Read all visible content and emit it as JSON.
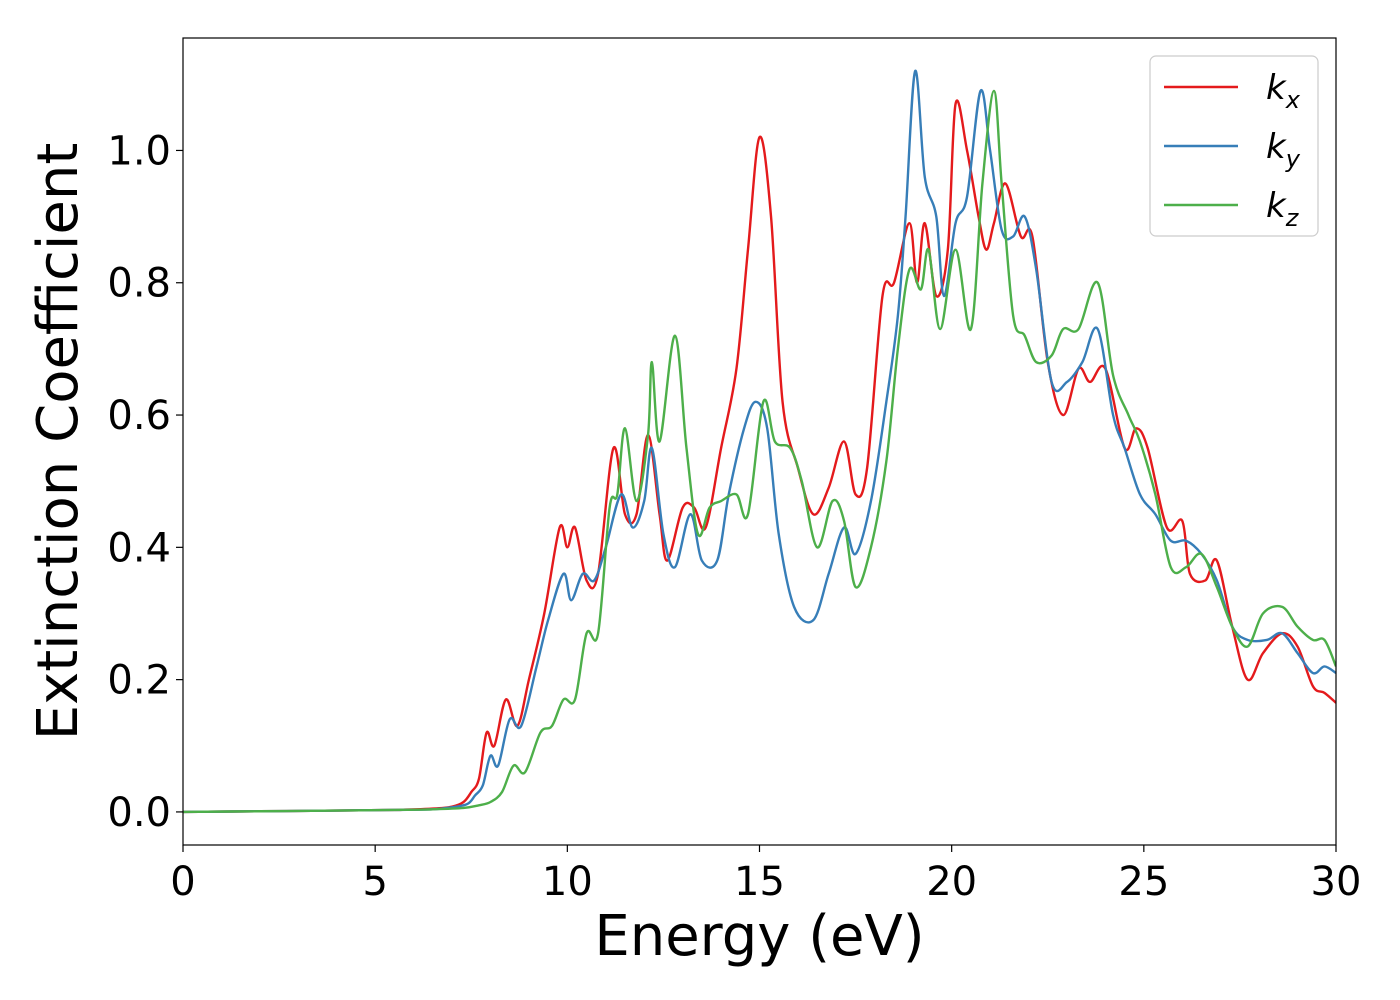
{
  "chart_data": {
    "type": "line",
    "title": "",
    "xlabel": "Energy (eV)",
    "ylabel": "Extinction Coefficient",
    "xlim": [
      0,
      30
    ],
    "ylim": [
      -0.05,
      1.17
    ],
    "xticks": [
      0,
      5,
      10,
      15,
      20,
      25,
      30
    ],
    "yticks": [
      0.0,
      0.2,
      0.4,
      0.6,
      0.8,
      1.0
    ],
    "xtick_labels": [
      "0",
      "5",
      "10",
      "15",
      "20",
      "25",
      "30"
    ],
    "ytick_labels": [
      "0.0",
      "0.2",
      "0.4",
      "0.6",
      "0.8",
      "1.0"
    ],
    "grid": false,
    "legend": {
      "position": "top-right"
    },
    "series": [
      {
        "name": "k",
        "subscript": "x",
        "color": "#e41a1c",
        "points": [
          [
            0,
            0.0
          ],
          [
            2,
            0.001
          ],
          [
            4,
            0.002
          ],
          [
            5.5,
            0.003
          ],
          [
            6.5,
            0.005
          ],
          [
            7.0,
            0.008
          ],
          [
            7.3,
            0.015
          ],
          [
            7.5,
            0.03
          ],
          [
            7.7,
            0.05
          ],
          [
            7.9,
            0.12
          ],
          [
            8.1,
            0.1
          ],
          [
            8.4,
            0.17
          ],
          [
            8.7,
            0.13
          ],
          [
            9.0,
            0.2
          ],
          [
            9.4,
            0.3
          ],
          [
            9.8,
            0.43
          ],
          [
            10.0,
            0.4
          ],
          [
            10.2,
            0.43
          ],
          [
            10.5,
            0.35
          ],
          [
            10.8,
            0.36
          ],
          [
            11.2,
            0.55
          ],
          [
            11.5,
            0.45
          ],
          [
            11.8,
            0.45
          ],
          [
            12.1,
            0.57
          ],
          [
            12.4,
            0.45
          ],
          [
            12.6,
            0.38
          ],
          [
            13.0,
            0.46
          ],
          [
            13.3,
            0.46
          ],
          [
            13.6,
            0.43
          ],
          [
            14.0,
            0.55
          ],
          [
            14.4,
            0.67
          ],
          [
            14.7,
            0.85
          ],
          [
            15.0,
            1.02
          ],
          [
            15.3,
            0.9
          ],
          [
            15.6,
            0.62
          ],
          [
            16.0,
            0.52
          ],
          [
            16.4,
            0.45
          ],
          [
            16.8,
            0.49
          ],
          [
            17.2,
            0.56
          ],
          [
            17.5,
            0.48
          ],
          [
            17.8,
            0.52
          ],
          [
            18.2,
            0.78
          ],
          [
            18.5,
            0.8
          ],
          [
            18.9,
            0.89
          ],
          [
            19.1,
            0.8
          ],
          [
            19.3,
            0.89
          ],
          [
            19.6,
            0.78
          ],
          [
            19.9,
            0.85
          ],
          [
            20.1,
            1.07
          ],
          [
            20.4,
            1.0
          ],
          [
            20.7,
            0.9
          ],
          [
            20.9,
            0.85
          ],
          [
            21.1,
            0.89
          ],
          [
            21.4,
            0.95
          ],
          [
            21.8,
            0.87
          ],
          [
            22.1,
            0.87
          ],
          [
            22.5,
            0.68
          ],
          [
            22.9,
            0.6
          ],
          [
            23.3,
            0.67
          ],
          [
            23.6,
            0.65
          ],
          [
            24.0,
            0.67
          ],
          [
            24.5,
            0.55
          ],
          [
            24.8,
            0.58
          ],
          [
            25.1,
            0.55
          ],
          [
            25.6,
            0.43
          ],
          [
            26.0,
            0.44
          ],
          [
            26.2,
            0.36
          ],
          [
            26.6,
            0.35
          ],
          [
            26.9,
            0.38
          ],
          [
            27.3,
            0.28
          ],
          [
            27.7,
            0.2
          ],
          [
            28.1,
            0.24
          ],
          [
            28.6,
            0.27
          ],
          [
            29.0,
            0.25
          ],
          [
            29.4,
            0.19
          ],
          [
            29.7,
            0.18
          ],
          [
            30,
            0.165
          ]
        ]
      },
      {
        "name": "k",
        "subscript": "y",
        "color": "#377eb8",
        "points": [
          [
            0,
            0.0
          ],
          [
            2,
            0.001
          ],
          [
            4,
            0.002
          ],
          [
            5.5,
            0.003
          ],
          [
            6.5,
            0.004
          ],
          [
            7.0,
            0.007
          ],
          [
            7.4,
            0.012
          ],
          [
            7.6,
            0.025
          ],
          [
            7.8,
            0.04
          ],
          [
            8.0,
            0.085
          ],
          [
            8.2,
            0.07
          ],
          [
            8.5,
            0.14
          ],
          [
            8.8,
            0.13
          ],
          [
            9.2,
            0.22
          ],
          [
            9.5,
            0.29
          ],
          [
            9.9,
            0.36
          ],
          [
            10.1,
            0.32
          ],
          [
            10.4,
            0.36
          ],
          [
            10.7,
            0.35
          ],
          [
            11.0,
            0.4
          ],
          [
            11.4,
            0.48
          ],
          [
            11.7,
            0.43
          ],
          [
            12.0,
            0.47
          ],
          [
            12.2,
            0.55
          ],
          [
            12.5,
            0.42
          ],
          [
            12.8,
            0.37
          ],
          [
            13.2,
            0.45
          ],
          [
            13.5,
            0.38
          ],
          [
            13.9,
            0.38
          ],
          [
            14.2,
            0.48
          ],
          [
            14.6,
            0.58
          ],
          [
            14.9,
            0.62
          ],
          [
            15.2,
            0.58
          ],
          [
            15.5,
            0.42
          ],
          [
            15.9,
            0.31
          ],
          [
            16.4,
            0.29
          ],
          [
            16.8,
            0.36
          ],
          [
            17.2,
            0.43
          ],
          [
            17.5,
            0.39
          ],
          [
            17.9,
            0.47
          ],
          [
            18.3,
            0.62
          ],
          [
            18.6,
            0.75
          ],
          [
            18.8,
            0.9
          ],
          [
            19.05,
            1.12
          ],
          [
            19.3,
            0.96
          ],
          [
            19.6,
            0.9
          ],
          [
            19.8,
            0.78
          ],
          [
            20.1,
            0.89
          ],
          [
            20.4,
            0.93
          ],
          [
            20.75,
            1.09
          ],
          [
            21.0,
            1.0
          ],
          [
            21.3,
            0.88
          ],
          [
            21.6,
            0.87
          ],
          [
            21.9,
            0.9
          ],
          [
            22.2,
            0.82
          ],
          [
            22.6,
            0.65
          ],
          [
            23.0,
            0.65
          ],
          [
            23.4,
            0.68
          ],
          [
            23.8,
            0.73
          ],
          [
            24.2,
            0.6
          ],
          [
            24.5,
            0.55
          ],
          [
            24.9,
            0.48
          ],
          [
            25.3,
            0.45
          ],
          [
            25.7,
            0.41
          ],
          [
            26.1,
            0.41
          ],
          [
            26.5,
            0.39
          ],
          [
            26.9,
            0.35
          ],
          [
            27.3,
            0.28
          ],
          [
            27.7,
            0.26
          ],
          [
            28.2,
            0.26
          ],
          [
            28.6,
            0.27
          ],
          [
            29.0,
            0.24
          ],
          [
            29.4,
            0.21
          ],
          [
            29.7,
            0.22
          ],
          [
            30,
            0.21
          ]
        ]
      },
      {
        "name": "k",
        "subscript": "z",
        "color": "#4daf4a",
        "points": [
          [
            0,
            0.0
          ],
          [
            2,
            0.001
          ],
          [
            4,
            0.002
          ],
          [
            5.5,
            0.003
          ],
          [
            6.5,
            0.004
          ],
          [
            7.3,
            0.006
          ],
          [
            7.7,
            0.01
          ],
          [
            8.0,
            0.015
          ],
          [
            8.3,
            0.03
          ],
          [
            8.6,
            0.07
          ],
          [
            8.9,
            0.06
          ],
          [
            9.3,
            0.12
          ],
          [
            9.6,
            0.13
          ],
          [
            9.9,
            0.17
          ],
          [
            10.2,
            0.17
          ],
          [
            10.5,
            0.27
          ],
          [
            10.8,
            0.27
          ],
          [
            11.1,
            0.46
          ],
          [
            11.3,
            0.48
          ],
          [
            11.5,
            0.58
          ],
          [
            11.8,
            0.47
          ],
          [
            12.1,
            0.57
          ],
          [
            12.2,
            0.68
          ],
          [
            12.4,
            0.56
          ],
          [
            12.8,
            0.72
          ],
          [
            13.1,
            0.55
          ],
          [
            13.4,
            0.42
          ],
          [
            13.7,
            0.46
          ],
          [
            14.0,
            0.47
          ],
          [
            14.4,
            0.48
          ],
          [
            14.7,
            0.45
          ],
          [
            15.1,
            0.62
          ],
          [
            15.4,
            0.56
          ],
          [
            15.8,
            0.55
          ],
          [
            16.1,
            0.5
          ],
          [
            16.5,
            0.4
          ],
          [
            16.9,
            0.47
          ],
          [
            17.2,
            0.44
          ],
          [
            17.5,
            0.34
          ],
          [
            17.9,
            0.4
          ],
          [
            18.3,
            0.53
          ],
          [
            18.6,
            0.7
          ],
          [
            18.9,
            0.82
          ],
          [
            19.2,
            0.79
          ],
          [
            19.4,
            0.85
          ],
          [
            19.7,
            0.73
          ],
          [
            20.1,
            0.85
          ],
          [
            20.5,
            0.73
          ],
          [
            20.8,
            0.95
          ],
          [
            21.1,
            1.09
          ],
          [
            21.3,
            0.95
          ],
          [
            21.6,
            0.75
          ],
          [
            21.9,
            0.72
          ],
          [
            22.2,
            0.68
          ],
          [
            22.6,
            0.69
          ],
          [
            22.9,
            0.73
          ],
          [
            23.3,
            0.73
          ],
          [
            23.8,
            0.8
          ],
          [
            24.2,
            0.66
          ],
          [
            24.6,
            0.6
          ],
          [
            24.9,
            0.56
          ],
          [
            25.3,
            0.48
          ],
          [
            25.7,
            0.37
          ],
          [
            26.1,
            0.37
          ],
          [
            26.5,
            0.39
          ],
          [
            26.9,
            0.34
          ],
          [
            27.3,
            0.28
          ],
          [
            27.7,
            0.25
          ],
          [
            28.1,
            0.3
          ],
          [
            28.6,
            0.31
          ],
          [
            29.0,
            0.28
          ],
          [
            29.4,
            0.26
          ],
          [
            29.7,
            0.26
          ],
          [
            30,
            0.22
          ]
        ]
      }
    ]
  }
}
